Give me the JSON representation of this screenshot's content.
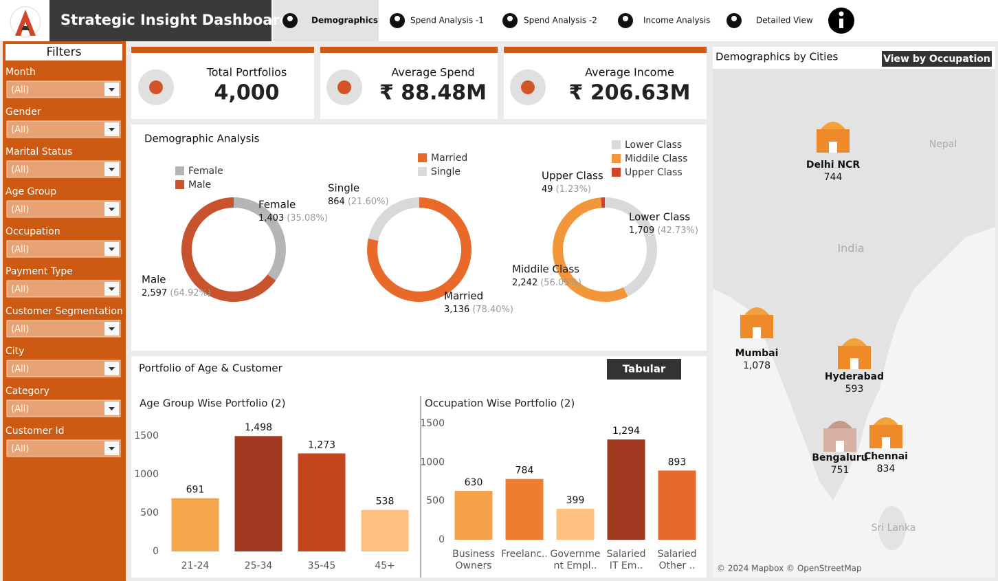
{
  "header": {
    "title": "Strategic Insight Dashboard",
    "tabs": [
      "Demographics",
      "Spend Analysis -1",
      "Spend Analysis -2",
      "Income Analysis",
      "Detailed View"
    ]
  },
  "filters": {
    "title": "Filters",
    "items": [
      {
        "label": "Month",
        "value": "(All)"
      },
      {
        "label": "Gender",
        "value": "(All)"
      },
      {
        "label": "Marital Status",
        "value": "(All)"
      },
      {
        "label": "Age Group",
        "value": "(All)"
      },
      {
        "label": "Occupation",
        "value": "(All)"
      },
      {
        "label": "Payment Type",
        "value": "(All)"
      },
      {
        "label": "Customer Segmentation",
        "value": "(All)"
      },
      {
        "label": "City",
        "value": "(All)"
      },
      {
        "label": "Category",
        "value": "(All)"
      },
      {
        "label": "Customer Id",
        "value": "(All)"
      }
    ]
  },
  "kpis": [
    {
      "label": "Total Portfolios",
      "value": "4,000"
    },
    {
      "label": "Average Spend",
      "value": "₹ 88.48M"
    },
    {
      "label": "Average Income",
      "value": "₹ 206.63M"
    }
  ],
  "demographic_analysis": {
    "title": "Demographic Analysis",
    "charts": [
      {
        "type": "donut",
        "categories": [
          "Female",
          "Male"
        ],
        "values": [
          1403,
          2597
        ],
        "value_labels": [
          "1,403",
          "2,597"
        ],
        "percent_labels": [
          "(35.08%)",
          "(64.92%)"
        ],
        "colors": [
          "#b5b5b5",
          "#c8532c"
        ]
      },
      {
        "type": "donut",
        "categories": [
          "Married",
          "Single"
        ],
        "values": [
          3136,
          864
        ],
        "value_labels": [
          "3,136",
          "864"
        ],
        "percent_labels": [
          "(78.40%)",
          "(21.60%)"
        ],
        "colors": [
          "#e8692a",
          "#d9d9d9"
        ]
      },
      {
        "type": "donut",
        "categories": [
          "Lower Class",
          "Middile Class",
          "Upper Class"
        ],
        "values": [
          1709,
          2242,
          49
        ],
        "value_labels": [
          "1,709",
          "2,242",
          "49"
        ],
        "percent_labels": [
          "(42.73%)",
          "(56.05%)",
          "(1.23%)"
        ],
        "colors": [
          "#d9d9d9",
          "#f2963a",
          "#d2452a"
        ]
      }
    ]
  },
  "portfolio": {
    "title": "Portfolio of Age & Customer",
    "button": "Tabular",
    "charts": [
      {
        "type": "bar",
        "title": "Age Group Wise Portfolio (2)",
        "categories": [
          [
            "21-24"
          ],
          [
            "25-34"
          ],
          [
            "35-45"
          ],
          [
            "45+"
          ]
        ],
        "values": [
          691,
          1498,
          1273,
          538
        ],
        "value_labels": [
          "691",
          "1,498",
          "1,273",
          "538"
        ],
        "colors": [
          "#f5a64c",
          "#a0391f",
          "#c4461f",
          "#fdc07f"
        ],
        "ylim": [
          0,
          1600
        ],
        "yticks": [
          0,
          500,
          1000,
          1500
        ]
      },
      {
        "type": "bar",
        "title": "Occupation Wise Portfolio (2)",
        "categories": [
          [
            "Business",
            "Owners"
          ],
          [
            "Freelanc.."
          ],
          [
            "Governme",
            "nt Empl.."
          ],
          [
            "Salaried",
            "IT Em.."
          ],
          [
            "Salaried",
            "Other .."
          ]
        ],
        "values": [
          630,
          784,
          399,
          1294,
          893
        ],
        "value_labels": [
          "630",
          "784",
          "399",
          "1,294",
          "893"
        ],
        "colors": [
          "#f5a04a",
          "#ee7d2e",
          "#fdc07f",
          "#a0391f",
          "#e8692a"
        ],
        "ylim": [
          0,
          1600
        ],
        "yticks": [
          0,
          500,
          1000,
          1500
        ]
      }
    ]
  },
  "map": {
    "title": "Demographics by Cities",
    "button": "View by Occupation",
    "labels": [
      "Nepal",
      "India",
      "Sri Lanka"
    ],
    "cities": [
      {
        "name": "Delhi NCR",
        "value": "744"
      },
      {
        "name": "Mumbai",
        "value": "1,078"
      },
      {
        "name": "Hyderabad",
        "value": "593"
      },
      {
        "name": "Bengaluru",
        "value": "751"
      },
      {
        "name": "Chennai",
        "value": "834"
      }
    ],
    "attribution": "© 2024 Mapbox © OpenStreetMap"
  }
}
